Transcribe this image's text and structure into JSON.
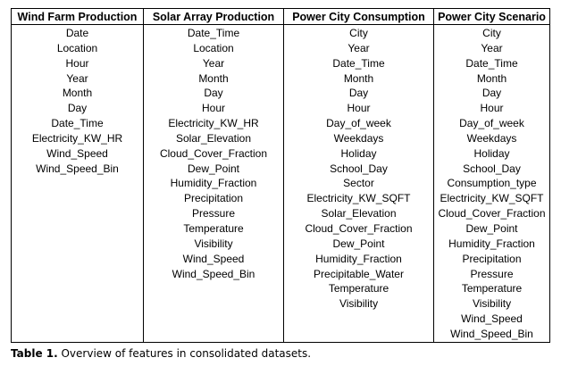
{
  "table": {
    "columns": [
      {
        "header": "Wind Farm Production",
        "features": [
          "Date",
          "Location",
          "Hour",
          "Year",
          "Month",
          "Day",
          "Date_Time",
          "Electricity_KW_HR",
          "Wind_Speed",
          "Wind_Speed_Bin"
        ]
      },
      {
        "header": "Solar Array Production",
        "features": [
          "Date_Time",
          "Location",
          "Year",
          "Month",
          "Day",
          "Hour",
          "Electricity_KW_HR",
          "Solar_Elevation",
          "Cloud_Cover_Fraction",
          "Dew_Point",
          "Humidity_Fraction",
          "Precipitation",
          "Pressure",
          "Temperature",
          "Visibility",
          "Wind_Speed",
          "Wind_Speed_Bin"
        ]
      },
      {
        "header": "Power City Consumption",
        "features": [
          "City",
          "Year",
          "Date_Time",
          "Month",
          "Day",
          "Hour",
          "Day_of_week",
          "Weekdays",
          "Holiday",
          "School_Day",
          "Sector",
          "Electricity_KW_SQFT",
          "Solar_Elevation",
          "Cloud_Cover_Fraction",
          "Dew_Point",
          "Humidity_Fraction",
          "Precipitable_Water",
          "Temperature",
          "Visibility"
        ]
      },
      {
        "header": "Power City Scenario",
        "features": [
          "City",
          "Year",
          "Date_Time",
          "Month",
          "Day",
          "Hour",
          "Day_of_week",
          "Weekdays",
          "Holiday",
          "School_Day",
          "Consumption_type",
          "Electricity_KW_SQFT",
          "Cloud_Cover_Fraction",
          "Dew_Point",
          "Humidity_Fraction",
          "Precipitation",
          "Pressure",
          "Temperature",
          "Visibility",
          "Wind_Speed",
          "Wind_Speed_Bin"
        ]
      }
    ]
  },
  "caption": {
    "label": "Table 1.",
    "text": " Overview of features in consolidated datasets."
  }
}
